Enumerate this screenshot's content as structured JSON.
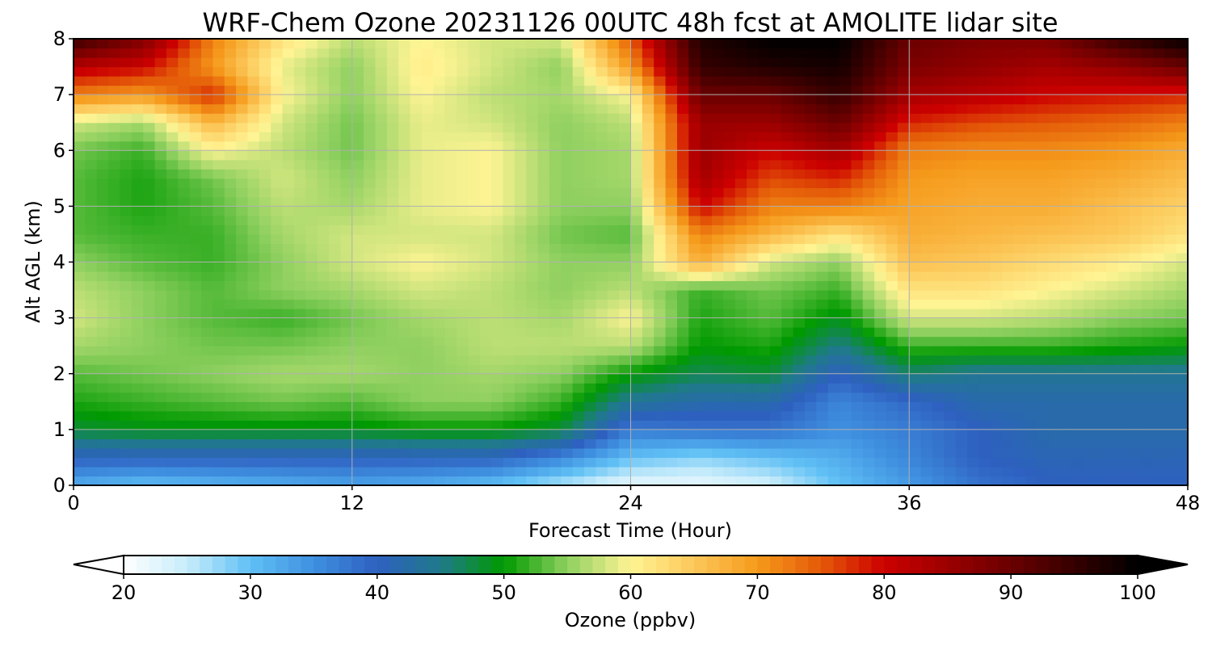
{
  "chart_data": {
    "type": "heatmap",
    "subtype": "filled-contour",
    "title": "WRF-Chem Ozone  20231126 00UTC 48h fcst at AMOLITE lidar site",
    "xlabel": "Forecast Time (Hour)",
    "ylabel": "Alt AGL (km)",
    "xlim": [
      0,
      48
    ],
    "ylim": [
      0,
      8
    ],
    "xticks": [
      0,
      12,
      24,
      36,
      48
    ],
    "xtick_labels": [
      "0",
      "12",
      "24",
      "36",
      "48"
    ],
    "yticks": [
      0,
      1,
      2,
      3,
      4,
      5,
      6,
      7,
      8
    ],
    "ytick_labels": [
      "0",
      "1",
      "2",
      "3",
      "4",
      "5",
      "6",
      "7",
      "8"
    ],
    "grid": true,
    "x": [
      0,
      3,
      6,
      9,
      12,
      15,
      18,
      21,
      24,
      27,
      30,
      33,
      36,
      39,
      42,
      45,
      48
    ],
    "y": [
      0,
      0.5,
      1,
      1.5,
      2,
      2.5,
      3,
      3.5,
      4,
      4.5,
      5,
      5.5,
      6,
      6.5,
      7,
      7.5,
      8
    ],
    "z_note": "rows = altitude (km, index matches y), columns = forecast hour (index matches x), values = ozone ppbv (estimated)",
    "z": [
      [
        32,
        30,
        31,
        32,
        33,
        32,
        30,
        26,
        22,
        22,
        24,
        30,
        34,
        38,
        40,
        40,
        40
      ],
      [
        40,
        40,
        40,
        40,
        40,
        40,
        40,
        36,
        30,
        28,
        30,
        32,
        36,
        40,
        41,
        41,
        41
      ],
      [
        48,
        49,
        49,
        49,
        49,
        50,
        50,
        48,
        37,
        38,
        38,
        35,
        37,
        40,
        42,
        42,
        42
      ],
      [
        51,
        52,
        53,
        54,
        53,
        55,
        55,
        52,
        44,
        42,
        42,
        36,
        39,
        42,
        42,
        42,
        42
      ],
      [
        53,
        54,
        55,
        56,
        56,
        55,
        56,
        55,
        50,
        47,
        48,
        40,
        46,
        44,
        44,
        44,
        44
      ],
      [
        56,
        55,
        54,
        54,
        55,
        55,
        57,
        57,
        57,
        50,
        51,
        45,
        52,
        52,
        52,
        51,
        50
      ],
      [
        58,
        55,
        53,
        52,
        54,
        56,
        57,
        56,
        60,
        51,
        53,
        49,
        58,
        58,
        57,
        55,
        54
      ],
      [
        57,
        55,
        53,
        55,
        56,
        58,
        57,
        55,
        57,
        52,
        54,
        52,
        62,
        62,
        60,
        58,
        56
      ],
      [
        55,
        53,
        52,
        55,
        58,
        60,
        58,
        55,
        55,
        68,
        58,
        55,
        66,
        65,
        63,
        61,
        58
      ],
      [
        53,
        52,
        52,
        56,
        58,
        58,
        58,
        54,
        53,
        72,
        67,
        62,
        68,
        67,
        66,
        65,
        62
      ],
      [
        53,
        51,
        53,
        57,
        56,
        59,
        60,
        55,
        55,
        80,
        72,
        72,
        69,
        68,
        68,
        66,
        64
      ],
      [
        53,
        51,
        54,
        58,
        55,
        59,
        60,
        55,
        56,
        84,
        76,
        78,
        70,
        69,
        69,
        68,
        66
      ],
      [
        54,
        52,
        60,
        57,
        54,
        59,
        60,
        55,
        56,
        85,
        80,
        84,
        72,
        71,
        71,
        70,
        68
      ],
      [
        58,
        56,
        67,
        58,
        54,
        59,
        58,
        55,
        57,
        85,
        85,
        90,
        78,
        76,
        75,
        74,
        72
      ],
      [
        72,
        70,
        78,
        60,
        55,
        60,
        57,
        56,
        60,
        90,
        90,
        95,
        84,
        82,
        80,
        79,
        78
      ],
      [
        82,
        80,
        70,
        59,
        55,
        61,
        58,
        55,
        70,
        95,
        97,
        98,
        88,
        86,
        84,
        86,
        90
      ],
      [
        95,
        88,
        72,
        62,
        57,
        60,
        58,
        58,
        75,
        97,
        100,
        100,
        90,
        88,
        88,
        95,
        100
      ]
    ],
    "colorbar": {
      "label": "Ozone  (ppbv)",
      "min": 20,
      "max": 100,
      "ticks": [
        20,
        30,
        40,
        50,
        60,
        70,
        80,
        90,
        100
      ],
      "tick_labels": [
        "20",
        "30",
        "40",
        "50",
        "60",
        "70",
        "80",
        "90",
        "100"
      ],
      "extend": "both",
      "placement": "bottom",
      "color_stops": [
        {
          "value": 20,
          "color": "#ffffff"
        },
        {
          "value": 25,
          "color": "#c7ecfb"
        },
        {
          "value": 30,
          "color": "#60c0f5"
        },
        {
          "value": 35,
          "color": "#3f90e0"
        },
        {
          "value": 40,
          "color": "#2e60c0"
        },
        {
          "value": 45,
          "color": "#1f7a8a"
        },
        {
          "value": 50,
          "color": "#009a00"
        },
        {
          "value": 55,
          "color": "#8fd060"
        },
        {
          "value": 60,
          "color": "#fff494"
        },
        {
          "value": 65,
          "color": "#fcc85a"
        },
        {
          "value": 70,
          "color": "#f59a1b"
        },
        {
          "value": 75,
          "color": "#e45a08"
        },
        {
          "value": 80,
          "color": "#cc0000"
        },
        {
          "value": 90,
          "color": "#6a0000"
        },
        {
          "value": 100,
          "color": "#000000"
        }
      ]
    }
  }
}
